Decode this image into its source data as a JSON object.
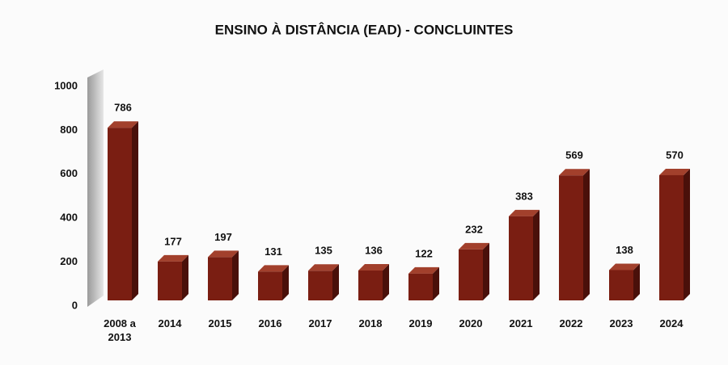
{
  "chart_data": {
    "type": "bar3d",
    "title": "ENSINO À DISTÂNCIA (EAD) - CONCLUINTES",
    "categories": [
      "2008 a 2013",
      "2014",
      "2015",
      "2016",
      "2017",
      "2018",
      "2019",
      "2020",
      "2021",
      "2022",
      "2023",
      "2024"
    ],
    "values": [
      786,
      177,
      197,
      131,
      135,
      136,
      122,
      232,
      383,
      569,
      138,
      570
    ],
    "color": "#7a1e12",
    "ylim": [
      0,
      1000
    ],
    "yticks": [
      0,
      200,
      400,
      600,
      800,
      1000
    ],
    "grid": false
  }
}
